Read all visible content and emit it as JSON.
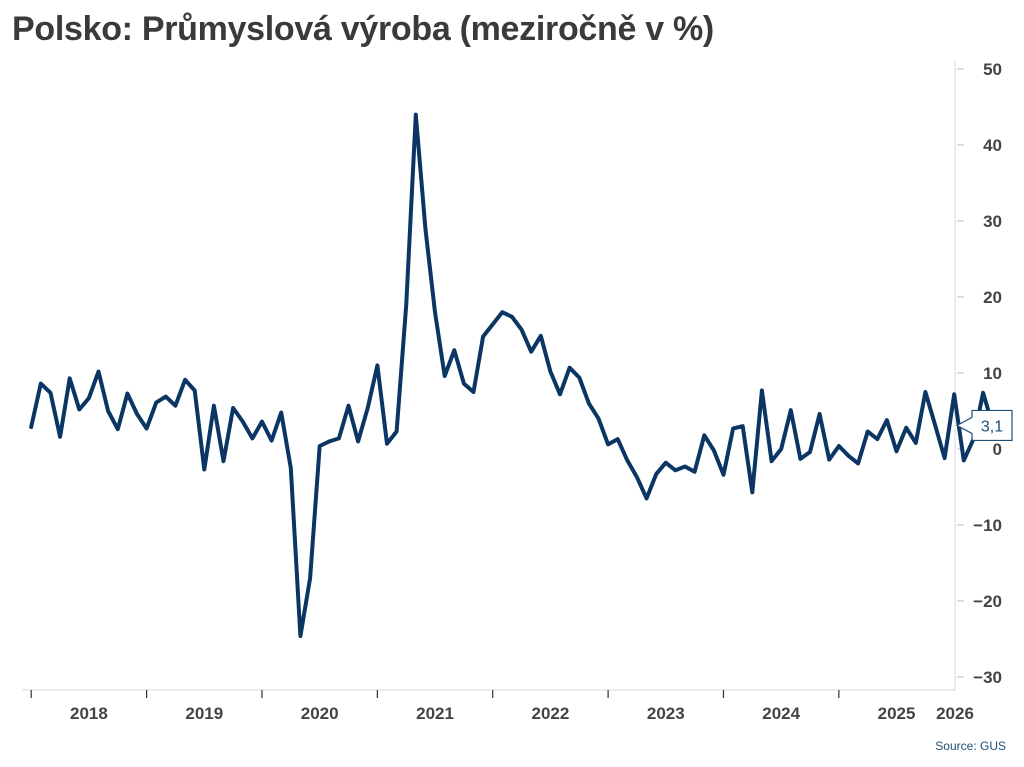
{
  "title": "Polsko: Průmyslová výroba (meziročně v %)",
  "source": "Source: GUS",
  "chart_data": {
    "type": "line",
    "title": "Polsko: Průmyslová výroba (meziročně v %)",
    "ylim": [
      -30,
      50
    ],
    "yticks": [
      50,
      40,
      30,
      20,
      10,
      0,
      -10,
      -20,
      -30
    ],
    "xlim": [
      2017.92,
      2025.92
    ],
    "x_tick_labels": [
      "2018",
      "2019",
      "2020",
      "2021",
      "2022",
      "2023",
      "2024",
      "2025",
      "2026"
    ],
    "grid": false,
    "line_color": "#0b3563",
    "last_value_label": "3,1",
    "series": [
      {
        "start": "2018-01",
        "frequency": "monthly",
        "values": [
          2.9,
          8.6,
          7.4,
          1.6,
          9.3,
          5.2,
          6.7,
          10.2,
          5.0,
          2.6,
          7.3,
          4.6,
          2.7,
          6.1,
          6.9,
          5.7,
          9.1,
          7.7,
          -2.7,
          5.7,
          -1.6,
          5.4,
          3.6,
          1.4,
          3.6,
          1.1,
          4.8,
          -2.5,
          -24.6,
          -17.0,
          0.4,
          1.0,
          1.4,
          5.7,
          1.0,
          5.4,
          11.0,
          0.7,
          2.3,
          18.9,
          44.0,
          29.0,
          18.0,
          9.6,
          13.0,
          8.6,
          7.5,
          14.8,
          16.4,
          18.0,
          17.4,
          15.7,
          12.8,
          14.9,
          10.2,
          7.2,
          10.7,
          9.4,
          6.0,
          4.0,
          0.6,
          1.3,
          -1.5,
          -3.7,
          -6.5,
          -3.3,
          -1.8,
          -2.8,
          -2.3,
          -3.0,
          1.8,
          -0.2,
          -3.4,
          2.7,
          3.0,
          -5.7,
          7.7,
          -1.6,
          0.0,
          5.1,
          -1.3,
          -0.4,
          4.6,
          -1.4,
          0.4,
          -0.9,
          -1.9,
          2.3,
          1.3,
          3.8,
          -0.3,
          2.8,
          0.8,
          7.5,
          3.2,
          -1.2,
          7.2,
          -1.5,
          1.3,
          7.4,
          3.1
        ]
      }
    ]
  }
}
